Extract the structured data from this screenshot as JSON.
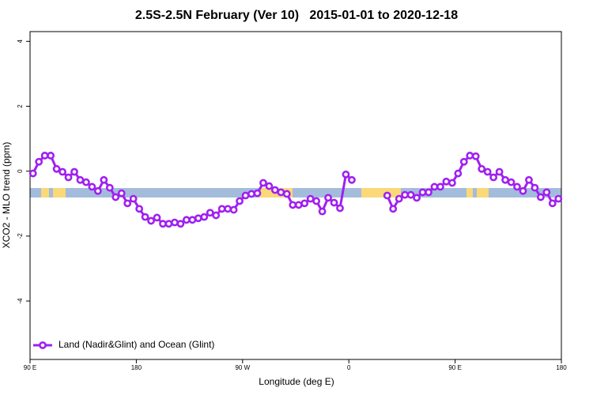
{
  "chart_data": {
    "type": "line",
    "title": "2.5S-2.5N February (Ver 10)   2015-01-01 to 2020-12-18",
    "x_label": "Longitude (deg E)",
    "y_label": "XCO2 - MLO trend (ppm)",
    "xlim": [
      90,
      540
    ],
    "ylim": [
      -5.8,
      4.3
    ],
    "xticks": [
      {
        "value": 90,
        "label": "90 E"
      },
      180,
      {
        "value": 270,
        "label": "90 W"
      },
      {
        "value": 360,
        "label": "0"
      },
      {
        "value": 450,
        "label": "90 E"
      },
      {
        "value": 540,
        "label": "180"
      }
    ],
    "yticks": [
      -4,
      -2,
      0,
      2,
      4
    ],
    "legend": "bottom-left",
    "x": [
      92.5,
      97.5,
      102.5,
      107.5,
      112.5,
      117.5,
      122.5,
      127.5,
      132.5,
      137.5,
      142.5,
      147.5,
      152.5,
      157.5,
      162.5,
      167.5,
      172.5,
      177.5,
      182.5,
      187.5,
      192.5,
      197.5,
      202.5,
      207.5,
      212.5,
      217.5,
      222.5,
      227.5,
      232.5,
      237.5,
      242.5,
      247.5,
      252.5,
      257.5,
      262.5,
      267.5,
      272.5,
      277.5,
      282.5,
      287.5,
      292.5,
      297.5,
      302.5,
      307.5,
      312.5,
      317.5,
      322.5,
      327.5,
      332.5,
      337.5,
      342.5,
      347.5,
      352.5,
      357.5,
      362.5,
      367.5,
      372.5,
      377.5,
      382.5,
      387.5,
      392.5,
      397.5,
      402.5,
      407.5,
      412.5,
      417.5,
      422.5,
      427.5,
      432.5,
      437.5,
      442.5,
      447.5,
      452.5,
      457.5,
      462.5,
      467.5,
      472.5,
      477.5,
      482.5,
      487.5,
      492.5,
      497.5,
      502.5,
      507.5,
      512.5,
      517.5,
      522.5,
      527.5,
      532.5,
      537.5
    ],
    "series": [
      {
        "name": "Land (Nadir&Glint) and Ocean (Glint)",
        "color": "#a020f0",
        "values": [
          -0.07,
          0.29,
          0.48,
          0.48,
          0.07,
          -0.02,
          -0.19,
          -0.02,
          -0.27,
          -0.34,
          -0.48,
          -0.61,
          -0.27,
          -0.51,
          -0.8,
          -0.68,
          -0.99,
          -0.85,
          -1.16,
          -1.41,
          -1.53,
          -1.43,
          -1.62,
          -1.62,
          -1.58,
          -1.62,
          -1.5,
          -1.5,
          -1.45,
          -1.41,
          -1.28,
          -1.36,
          -1.16,
          -1.16,
          -1.19,
          -0.92,
          -0.75,
          -0.7,
          -0.68,
          -0.36,
          -0.46,
          -0.58,
          -0.65,
          -0.7,
          -1.04,
          -1.04,
          -0.99,
          -0.85,
          -0.92,
          -1.24,
          -0.82,
          -0.97,
          -1.14,
          -0.1,
          -0.27,
          null,
          null,
          null,
          null,
          null,
          -0.75,
          -1.16,
          -0.85,
          -0.73,
          -0.73,
          -0.82,
          -0.65,
          -0.65,
          -0.48,
          -0.48,
          -0.32,
          -0.36,
          -0.07,
          0.29,
          0.48,
          0.46,
          0.07,
          -0.02,
          -0.19,
          -0.02,
          -0.27,
          -0.34,
          -0.48,
          -0.61,
          -0.27,
          -0.51,
          -0.8,
          -0.65,
          -0.99,
          -0.85
        ]
      }
    ]
  }
}
